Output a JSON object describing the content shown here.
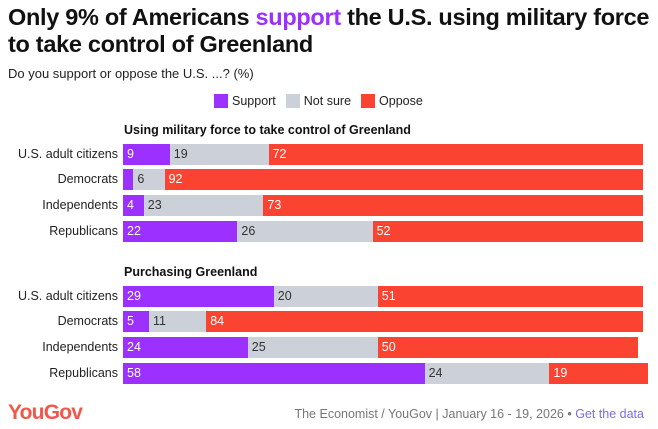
{
  "title": {
    "pre": "Only 9% of Americans ",
    "highlight": "support",
    "post": " the U.S. using military force to take control of Greenland"
  },
  "subtitle": "Do you support or oppose the U.S. ...? (%)",
  "footer": {
    "logo": "YouGov",
    "source": "The Economist / YouGov | January 16 - 19, 2026 • ",
    "link": "Get the data"
  },
  "chart_data": {
    "type": "bar",
    "stacked": true,
    "orientation": "horizontal",
    "legend": [
      {
        "name": "Support",
        "color": "#9b30ff"
      },
      {
        "name": "Not sure",
        "color": "#ccd0d9"
      },
      {
        "name": "Oppose",
        "color": "#fb4332"
      }
    ],
    "legend_placement": "top-right",
    "groups": [
      {
        "title": "Using military force to take control of Greenland",
        "categories": [
          "U.S. adult citizens",
          "Democrats",
          "Independents",
          "Republicans"
        ],
        "series": [
          {
            "name": "Support",
            "values": [
              9,
              2,
              4,
              22
            ]
          },
          {
            "name": "Not sure",
            "values": [
              19,
              6,
              23,
              26
            ]
          },
          {
            "name": "Oppose",
            "values": [
              72,
              92,
              73,
              52
            ]
          }
        ],
        "labels": [
          [
            "9",
            "19",
            "72"
          ],
          [
            "",
            "6",
            "92"
          ],
          [
            "4",
            "23",
            "73"
          ],
          [
            "22",
            "26",
            "52"
          ]
        ]
      },
      {
        "title": "Purchasing Greenland",
        "categories": [
          "U.S. adult citizens",
          "Democrats",
          "Independents",
          "Republicans"
        ],
        "series": [
          {
            "name": "Support",
            "values": [
              29,
              5,
              24,
              58
            ]
          },
          {
            "name": "Not sure",
            "values": [
              20,
              11,
              25,
              24
            ]
          },
          {
            "name": "Oppose",
            "values": [
              51,
              84,
              50,
              19
            ]
          }
        ],
        "labels": [
          [
            "29",
            "20",
            "51"
          ],
          [
            "5",
            "11",
            "84"
          ],
          [
            "24",
            "25",
            "50"
          ],
          [
            "58",
            "24",
            "19"
          ]
        ]
      }
    ]
  }
}
